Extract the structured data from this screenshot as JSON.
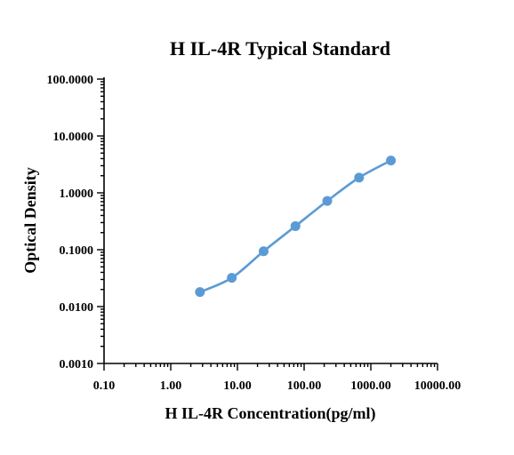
{
  "chart_data": {
    "type": "line",
    "title": "H IL-4R Typical Standard",
    "xlabel": "H IL-4R Concentration(pg/ml)",
    "ylabel": "Optical Density",
    "x_scale": "log",
    "y_scale": "log",
    "xlim": [
      0.1,
      10000
    ],
    "ylim": [
      0.001,
      100
    ],
    "x_ticks": [
      0.1,
      1,
      10,
      100,
      1000,
      10000
    ],
    "x_tick_labels": [
      "0.10",
      "1.00",
      "10.00",
      "100.00",
      "1000.00",
      "10000.00"
    ],
    "y_ticks": [
      0.001,
      0.01,
      0.1,
      1,
      10,
      100
    ],
    "y_tick_labels": [
      "0.0010",
      "0.0100",
      "0.1000",
      "1.0000",
      "10.0000",
      "100.0000"
    ],
    "grid": false,
    "legend": "none",
    "series": [
      {
        "color": "#5b9bd5",
        "x": [
          2.74,
          8.23,
          24.7,
          74.1,
          222.2,
          666.7,
          2000
        ],
        "y": [
          0.018,
          0.032,
          0.094,
          0.26,
          0.72,
          1.85,
          3.7
        ]
      }
    ]
  }
}
